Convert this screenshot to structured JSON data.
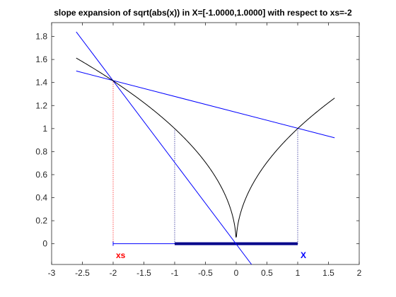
{
  "chart_data": {
    "type": "line",
    "title": "slope expansion of sqrt(abs(x)) in X=[-1.0000,1.0000] with respect to xs=-2",
    "xlim": [
      -3,
      2
    ],
    "ylim": [
      -0.18,
      1.92
    ],
    "xticks": [
      -3,
      -2.5,
      -2,
      -1.5,
      -1,
      -0.5,
      0,
      0.5,
      1,
      1.5,
      2
    ],
    "xtick_labels": [
      "-3",
      "-2.5",
      "-2",
      "-1.5",
      "-1",
      "-0.5",
      "0",
      "0.5",
      "1",
      "1.5",
      "2"
    ],
    "yticks": [
      0,
      0.2,
      0.4,
      0.6,
      0.8,
      1,
      1.2,
      1.4,
      1.6,
      1.8
    ],
    "ytick_labels": [
      "0",
      "0.2",
      "0.4",
      "0.6",
      "0.8",
      "1",
      "1.2",
      "1.4",
      "1.6",
      "1.8"
    ],
    "grid": false,
    "function": {
      "expression": "sqrt(abs(x))",
      "x_range": [
        -2.6,
        1.6
      ],
      "color": "#000000"
    },
    "lines": [
      {
        "x": [
          -2.6,
          1.6
        ],
        "y": [
          1.5,
          0.92
        ],
        "color": "#0000ff"
      },
      {
        "x": [
          -2.6,
          0.25
        ],
        "y": [
          1.84,
          -0.18
        ],
        "color": "#0000ff"
      }
    ],
    "dotted_verticals": [
      {
        "x": -2,
        "y": [
          0,
          1.414
        ],
        "color": "#ff0000"
      },
      {
        "x": -1,
        "y": [
          0,
          1.0
        ],
        "color": "#000080"
      },
      {
        "x": 1,
        "y": [
          0,
          1.0
        ],
        "color": "#000080"
      }
    ],
    "interval_thin": {
      "x": [
        -2,
        1
      ],
      "y": 0,
      "color": "#0000ff"
    },
    "interval_thick": {
      "x": [
        -1,
        1
      ],
      "y": 0,
      "color": "#00008b"
    },
    "annotations": [
      {
        "text": "xs",
        "x": -2,
        "y": -0.1,
        "color": "#ff0000"
      },
      {
        "text": "X",
        "x": 1,
        "y": -0.1,
        "color": "#0000ff"
      }
    ]
  }
}
